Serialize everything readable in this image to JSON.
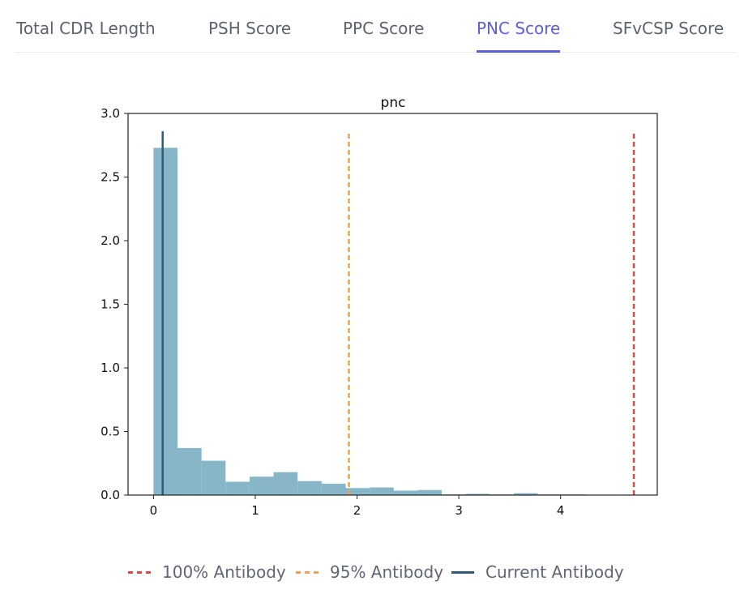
{
  "tabs": [
    {
      "label": "Total CDR Length",
      "active": false
    },
    {
      "label": "PSH Score",
      "active": false
    },
    {
      "label": "PPC Score",
      "active": false
    },
    {
      "label": "PNC Score",
      "active": true
    },
    {
      "label": "SFvCSP Score",
      "active": false
    }
  ],
  "colors": {
    "accent": "#5a5fd8",
    "bars": "#86b6c8",
    "current": "#2e5a78",
    "p95": "#eea24a",
    "p100": "#e0473f"
  },
  "chart_data": {
    "type": "bar",
    "title": "pnc",
    "xlabel": "",
    "ylabel": "",
    "xlim": [
      -0.25,
      4.95
    ],
    "ylim": [
      0,
      3.0
    ],
    "xticks": [
      0,
      1,
      2,
      3,
      4
    ],
    "yticks": [
      0.0,
      0.5,
      1.0,
      1.5,
      2.0,
      2.5,
      3.0
    ],
    "bin_edges": [
      0,
      0.236,
      0.472,
      0.708,
      0.944,
      1.18,
      1.416,
      1.652,
      1.888,
      2.124,
      2.36,
      2.596,
      2.832,
      3.068,
      3.304,
      3.54,
      3.776,
      4.012,
      4.248,
      4.484,
      4.72
    ],
    "values": [
      2.73,
      0.37,
      0.27,
      0.105,
      0.145,
      0.18,
      0.11,
      0.09,
      0.055,
      0.06,
      0.035,
      0.04,
      0.005,
      0.01,
      0.005,
      0.015,
      0.005,
      0.005,
      0.003,
      0.003
    ],
    "vlines": [
      {
        "name": "Current Antibody",
        "x": 0.09,
        "ymax": 2.86,
        "style": "solid"
      },
      {
        "name": "95% Antibody",
        "x": 1.92,
        "ymax": 2.86,
        "style": "dashed"
      },
      {
        "name": "100% Antibody",
        "x": 4.72,
        "ymax": 2.86,
        "style": "dashed"
      }
    ],
    "legend": {
      "placement": "bottom",
      "items": [
        {
          "label": "100% Antibody",
          "style": "dashed",
          "color": "#e0473f"
        },
        {
          "label": "95% Antibody",
          "style": "dashed",
          "color": "#eea24a"
        },
        {
          "label": "Current Antibody",
          "style": "solid",
          "color": "#2e5a78"
        }
      ]
    },
    "grid": false
  }
}
